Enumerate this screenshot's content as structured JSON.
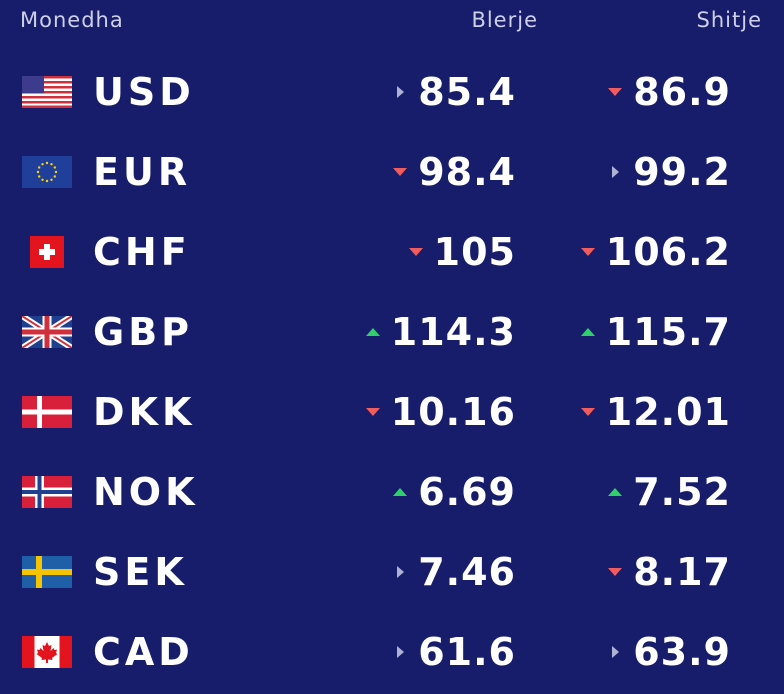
{
  "header": {
    "currency": "Monedha",
    "buy": "Blerje",
    "sell": "Shitje"
  },
  "rows": [
    {
      "code": "USD",
      "buy": "85.4",
      "buy_trend": "neutral",
      "sell": "86.9",
      "sell_trend": "down"
    },
    {
      "code": "EUR",
      "buy": "98.4",
      "buy_trend": "down",
      "sell": "99.2",
      "sell_trend": "neutral"
    },
    {
      "code": "CHF",
      "buy": "105",
      "buy_trend": "down",
      "sell": "106.2",
      "sell_trend": "down"
    },
    {
      "code": "GBP",
      "buy": "114.3",
      "buy_trend": "up",
      "sell": "115.7",
      "sell_trend": "up"
    },
    {
      "code": "DKK",
      "buy": "10.16",
      "buy_trend": "down",
      "sell": "12.01",
      "sell_trend": "down"
    },
    {
      "code": "NOK",
      "buy": "6.69",
      "buy_trend": "up",
      "sell": "7.52",
      "sell_trend": "up"
    },
    {
      "code": "SEK",
      "buy": "7.46",
      "buy_trend": "neutral",
      "sell": "8.17",
      "sell_trend": "down"
    },
    {
      "code": "CAD",
      "buy": "61.6",
      "buy_trend": "neutral",
      "sell": "63.9",
      "sell_trend": "neutral"
    }
  ]
}
